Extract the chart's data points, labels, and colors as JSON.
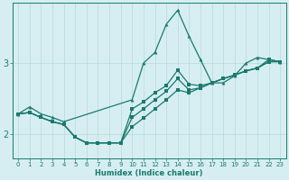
{
  "xlabel": "Humidex (Indice chaleur)",
  "background_color": "#d6eef2",
  "line_color": "#1a7a6e",
  "xlim": [
    -0.5,
    23.5
  ],
  "ylim": [
    1.65,
    3.85
  ],
  "yticks": [
    2,
    3
  ],
  "xticks": [
    0,
    1,
    2,
    3,
    4,
    5,
    6,
    7,
    8,
    9,
    10,
    11,
    12,
    13,
    14,
    15,
    16,
    17,
    18,
    19,
    20,
    21,
    22,
    23
  ],
  "series1_x": [
    0,
    1,
    2,
    3,
    4,
    10,
    11,
    12,
    13,
    14,
    15,
    16,
    17,
    18,
    19,
    20,
    21,
    22,
    23
  ],
  "series1_y": [
    2.28,
    2.38,
    2.28,
    2.23,
    2.17,
    2.48,
    3.0,
    3.15,
    3.55,
    3.75,
    3.38,
    3.05,
    2.72,
    2.72,
    2.82,
    3.0,
    3.08,
    3.05,
    3.02
  ],
  "series2_x": [
    0,
    1,
    2,
    3,
    4,
    5,
    6,
    7,
    8,
    9,
    10,
    11,
    12,
    13,
    14,
    15,
    16,
    17,
    18,
    19,
    20,
    21,
    22,
    23
  ],
  "series2_y": [
    2.28,
    2.3,
    2.23,
    2.17,
    2.13,
    1.95,
    1.87,
    1.87,
    1.87,
    1.87,
    2.1,
    2.22,
    2.35,
    2.48,
    2.62,
    2.58,
    2.65,
    2.72,
    2.78,
    2.83,
    2.89,
    2.93,
    3.02,
    3.02
  ],
  "series3_x": [
    0,
    1,
    2,
    3,
    4,
    5,
    6,
    7,
    8,
    9,
    10,
    11,
    12,
    13,
    14,
    15,
    16,
    17,
    18,
    19,
    20,
    21,
    22,
    23
  ],
  "series3_y": [
    2.28,
    2.3,
    2.23,
    2.17,
    2.13,
    1.95,
    1.87,
    1.87,
    1.87,
    1.87,
    2.23,
    2.35,
    2.48,
    2.6,
    2.78,
    2.62,
    2.65,
    2.72,
    2.78,
    2.83,
    2.89,
    2.93,
    3.02,
    3.02
  ],
  "series4_x": [
    0,
    1,
    2,
    3,
    4,
    5,
    6,
    7,
    8,
    9,
    10,
    11,
    12,
    13,
    14,
    15,
    16,
    17,
    18,
    19,
    20,
    21,
    22,
    23
  ],
  "series4_y": [
    2.28,
    2.3,
    2.23,
    2.17,
    2.13,
    1.95,
    1.87,
    1.87,
    1.87,
    1.87,
    2.35,
    2.45,
    2.58,
    2.68,
    2.9,
    2.7,
    2.68,
    2.72,
    2.78,
    2.83,
    2.89,
    2.93,
    3.05,
    3.02
  ]
}
